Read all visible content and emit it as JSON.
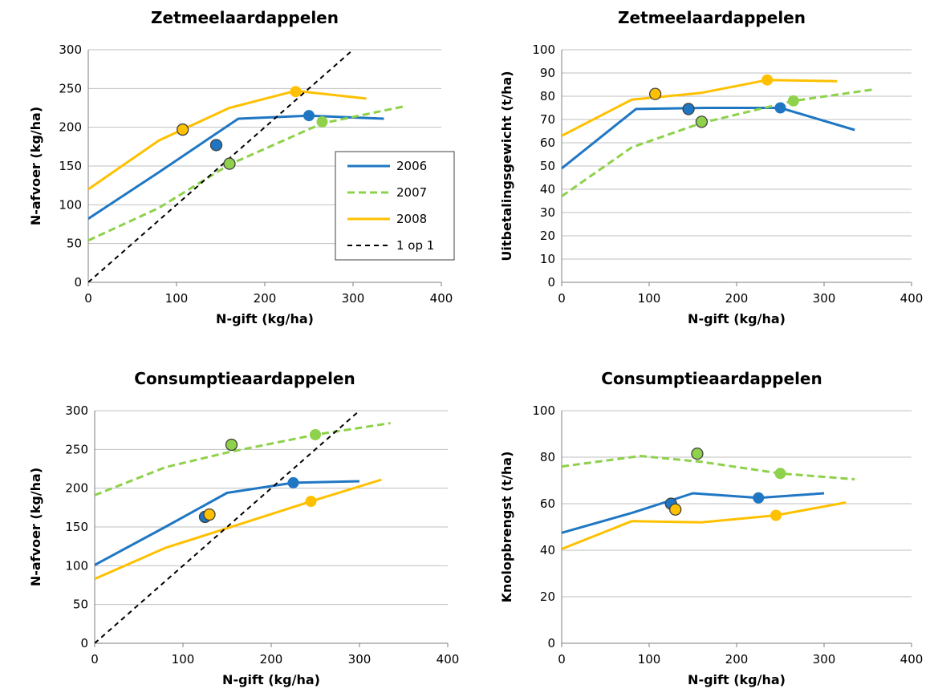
{
  "series_colors": {
    "2006": "#1F77C4",
    "2007": "#8ED14A",
    "2008": "#FFC000",
    "1 op 1": "#000000"
  },
  "legend": {
    "entries": [
      "2006",
      "2007",
      "2008",
      "1 op 1"
    ],
    "placement": "inside-right"
  },
  "chart_data": [
    {
      "type": "line",
      "title": "Zetmeelaardappelen",
      "xlabel": "N-gift (kg/ha)",
      "ylabel": "N-afvoer (kg/ha)",
      "xlim": [
        0,
        400
      ],
      "ylim": [
        0,
        300
      ],
      "xticks": [
        0,
        100,
        200,
        300,
        400
      ],
      "yticks": [
        0,
        50,
        100,
        150,
        200,
        250,
        300
      ],
      "grid": "horizontal",
      "legend": true,
      "series": [
        {
          "name": "2006",
          "style": "solid",
          "x": [
            0,
            80,
            170,
            250,
            335
          ],
          "y": [
            82,
            142,
            211,
            215,
            211
          ]
        },
        {
          "name": "2007",
          "style": "dashed",
          "x": [
            0,
            80,
            160,
            265,
            358
          ],
          "y": [
            54,
            96,
            152,
            205,
            227
          ]
        },
        {
          "name": "2008",
          "style": "solid",
          "x": [
            0,
            80,
            160,
            235,
            315
          ],
          "y": [
            120,
            183,
            225,
            247,
            237
          ]
        },
        {
          "name": "1 op 1",
          "style": "dashed",
          "x": [
            0,
            300
          ],
          "y": [
            0,
            300
          ]
        }
      ],
      "points": [
        {
          "series": "2006",
          "x": 145,
          "y": 177,
          "outlined": true
        },
        {
          "series": "2006",
          "x": 250,
          "y": 215,
          "outlined": false
        },
        {
          "series": "2007",
          "x": 160,
          "y": 153,
          "outlined": true
        },
        {
          "series": "2007",
          "x": 265,
          "y": 207,
          "outlined": false
        },
        {
          "series": "2008",
          "x": 107,
          "y": 197,
          "outlined": true
        },
        {
          "series": "2008",
          "x": 235,
          "y": 246,
          "outlined": false
        }
      ]
    },
    {
      "type": "line",
      "title": "Zetmeelaardappelen",
      "xlabel": "N-gift (kg/ha)",
      "ylabel": "Uitbetalingsgewicht (t/ha)",
      "xlim": [
        0,
        400
      ],
      "ylim": [
        0,
        100
      ],
      "xticks": [
        0,
        100,
        200,
        300,
        400
      ],
      "yticks": [
        0,
        10,
        20,
        30,
        40,
        50,
        60,
        70,
        80,
        90,
        100
      ],
      "grid": "horizontal",
      "legend": false,
      "series": [
        {
          "name": "2006",
          "style": "solid",
          "x": [
            0,
            85,
            165,
            250,
            335
          ],
          "y": [
            49,
            74.5,
            75,
            75,
            65.5
          ]
        },
        {
          "name": "2007",
          "style": "dashed",
          "x": [
            0,
            80,
            160,
            265,
            358
          ],
          "y": [
            37,
            58,
            68.5,
            78,
            83
          ]
        },
        {
          "name": "2008",
          "style": "solid",
          "x": [
            0,
            80,
            160,
            235,
            315
          ],
          "y": [
            63,
            78.5,
            81.5,
            87,
            86.5
          ]
        }
      ],
      "points": [
        {
          "series": "2006",
          "x": 145,
          "y": 74.5,
          "outlined": true
        },
        {
          "series": "2006",
          "x": 250,
          "y": 75,
          "outlined": false
        },
        {
          "series": "2007",
          "x": 160,
          "y": 69,
          "outlined": true
        },
        {
          "series": "2007",
          "x": 265,
          "y": 78,
          "outlined": false
        },
        {
          "series": "2008",
          "x": 107,
          "y": 81,
          "outlined": true
        },
        {
          "series": "2008",
          "x": 235,
          "y": 87,
          "outlined": false
        }
      ]
    },
    {
      "type": "line",
      "title": "Consumptieaardappelen",
      "xlabel": "N-gift (kg/ha)",
      "ylabel": "N-afvoer (kg/ha)",
      "xlim": [
        0,
        400
      ],
      "ylim": [
        0,
        300
      ],
      "xticks": [
        0,
        100,
        200,
        300,
        400
      ],
      "yticks": [
        0,
        50,
        100,
        150,
        200,
        250,
        300
      ],
      "grid": "horizontal",
      "legend": false,
      "series": [
        {
          "name": "2006",
          "style": "solid",
          "x": [
            0,
            80,
            150,
            225,
            300
          ],
          "y": [
            101,
            150,
            194,
            207,
            209
          ]
        },
        {
          "name": "2007",
          "style": "dashed",
          "x": [
            0,
            80,
            150,
            250,
            335
          ],
          "y": [
            191,
            227,
            246,
            269,
            284
          ]
        },
        {
          "name": "2008",
          "style": "solid",
          "x": [
            0,
            80,
            160,
            245,
            325
          ],
          "y": [
            83,
            123,
            152,
            183,
            211
          ]
        },
        {
          "name": "1 op 1",
          "style": "dashed",
          "x": [
            0,
            300
          ],
          "y": [
            0,
            300
          ]
        }
      ],
      "points": [
        {
          "series": "2006",
          "x": 125,
          "y": 163,
          "outlined": true
        },
        {
          "series": "2006",
          "x": 225,
          "y": 207,
          "outlined": false
        },
        {
          "series": "2007",
          "x": 155,
          "y": 256,
          "outlined": true
        },
        {
          "series": "2007",
          "x": 250,
          "y": 269,
          "outlined": false
        },
        {
          "series": "2008",
          "x": 130,
          "y": 166,
          "outlined": true
        },
        {
          "series": "2008",
          "x": 245,
          "y": 183,
          "outlined": false
        }
      ]
    },
    {
      "type": "line",
      "title": "Consumptieaardappelen",
      "xlabel": "N-gift (kg/ha)",
      "ylabel": "Knolopbrengst (t/ha)",
      "xlim": [
        0,
        400
      ],
      "ylim": [
        0,
        100
      ],
      "xticks": [
        0,
        100,
        200,
        300,
        400
      ],
      "yticks": [
        0,
        20,
        40,
        60,
        80,
        100
      ],
      "grid": "horizontal",
      "legend": false,
      "series": [
        {
          "name": "2006",
          "style": "solid",
          "x": [
            0,
            80,
            150,
            225,
            300
          ],
          "y": [
            47.5,
            56,
            64.5,
            62.5,
            64.5
          ]
        },
        {
          "name": "2007",
          "style": "dashed",
          "x": [
            0,
            90,
            160,
            250,
            335
          ],
          "y": [
            76,
            80.5,
            78,
            73,
            70.5
          ]
        },
        {
          "name": "2008",
          "style": "solid",
          "x": [
            0,
            80,
            160,
            245,
            325
          ],
          "y": [
            40.5,
            52.5,
            52,
            55,
            60.5
          ]
        }
      ],
      "points": [
        {
          "series": "2006",
          "x": 125,
          "y": 60,
          "outlined": true
        },
        {
          "series": "2006",
          "x": 225,
          "y": 62.5,
          "outlined": false
        },
        {
          "series": "2007",
          "x": 155,
          "y": 81.5,
          "outlined": true
        },
        {
          "series": "2007",
          "x": 250,
          "y": 73,
          "outlined": false
        },
        {
          "series": "2008",
          "x": 130,
          "y": 57.5,
          "outlined": true
        },
        {
          "series": "2008",
          "x": 245,
          "y": 55,
          "outlined": false
        }
      ]
    }
  ]
}
